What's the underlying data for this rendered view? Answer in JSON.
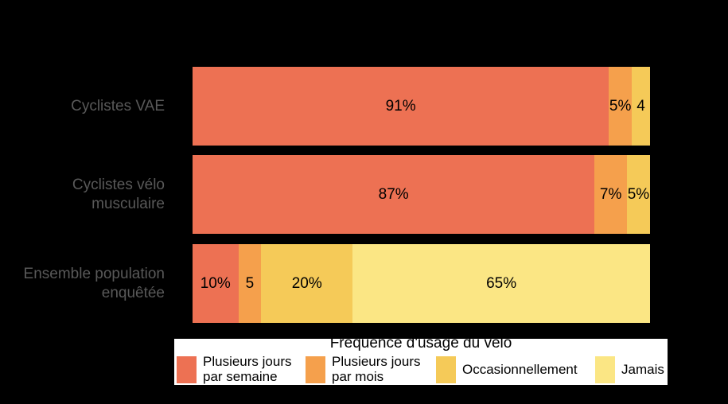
{
  "chart_data": {
    "type": "bar",
    "orientation": "horizontal-stacked",
    "legend_title": "Fréquence d'usage du vélo",
    "legend_position": "bottom",
    "xlim": [
      0,
      100
    ],
    "grid": false,
    "background_color": "#000000",
    "category_label_color": "#595959",
    "value_label_color": "#000000",
    "legend_background_color": "#ffffff",
    "categories": [
      {
        "name": "Cyclistes VAE",
        "lines": [
          "Cyclistes VAE"
        ]
      },
      {
        "name": "Cyclistes vélo musculaire",
        "lines": [
          "Cyclistes vélo",
          "musculaire"
        ]
      },
      {
        "name": "Ensemble population enquêtée",
        "lines": [
          "Ensemble population",
          "enquêtée"
        ]
      }
    ],
    "series": [
      {
        "name": "Plusieurs jours par semaine",
        "legend_lines": [
          "Plusieurs jours",
          "par semaine"
        ],
        "color": "#ED7153",
        "values": [
          91,
          87,
          10
        ],
        "labels": [
          "91%",
          "87%",
          "10%"
        ]
      },
      {
        "name": "Plusieurs jours par mois",
        "legend_lines": [
          "Plusieurs jours",
          "par mois"
        ],
        "color": "#F5A04C",
        "values": [
          5,
          7,
          5
        ],
        "labels": [
          "5%",
          "7%",
          "5"
        ]
      },
      {
        "name": "Occasionnellement",
        "legend_lines": [
          "Occasionnellement"
        ],
        "color": "#F5CA58",
        "values": [
          4,
          5,
          20
        ],
        "labels": [
          "4",
          "5%",
          "20%"
        ]
      },
      {
        "name": "Jamais",
        "legend_lines": [
          "Jamais"
        ],
        "color": "#FBE684",
        "values": [
          0,
          0,
          65
        ],
        "labels": [
          "",
          "",
          "65%"
        ]
      }
    ]
  }
}
